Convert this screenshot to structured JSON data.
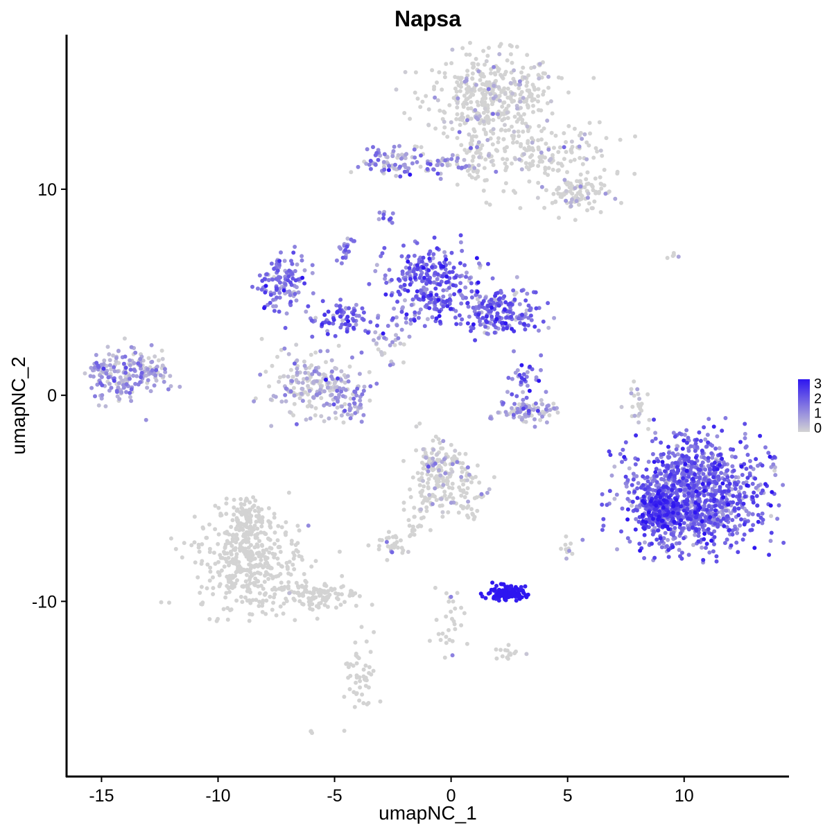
{
  "chart_data": {
    "type": "scatter",
    "title": "Napsa",
    "xlabel": "umapNC_1",
    "ylabel": "umapNC_2",
    "xlim": [
      -16.5,
      14.5
    ],
    "ylim": [
      -18.5,
      17.5
    ],
    "xticks": [
      -15,
      -10,
      -5,
      0,
      5,
      10
    ],
    "yticks": [
      -10,
      0,
      10
    ],
    "grid": false,
    "legend": {
      "placement": "right",
      "ticks": [
        0,
        1,
        2,
        3
      ],
      "low_color": "#D3D3D3",
      "high_color": "#2E16F0"
    },
    "clusters": [
      {
        "x": 1.7,
        "y": 14.6,
        "sx": 1.4,
        "sy": 1.0,
        "n": 380,
        "expr": 0.12
      },
      {
        "x": 3.7,
        "y": 11.6,
        "sx": 1.6,
        "sy": 0.8,
        "n": 190,
        "expr": 0.1
      },
      {
        "x": 5.4,
        "y": 9.7,
        "sx": 0.7,
        "sy": 0.5,
        "n": 90,
        "expr": 0.06
      },
      {
        "x": -2.7,
        "y": 11.3,
        "sx": 0.6,
        "sy": 0.4,
        "n": 60,
        "expr": 0.85
      },
      {
        "x": -0.6,
        "y": 11.2,
        "sx": 1.2,
        "sy": 0.3,
        "n": 60,
        "expr": 0.6
      },
      {
        "x": 1.0,
        "y": 11.8,
        "sx": 0.3,
        "sy": 1.0,
        "n": 50,
        "expr": 0.15
      },
      {
        "x": -2.8,
        "y": 8.6,
        "sx": 0.15,
        "sy": 0.2,
        "n": 10,
        "expr": 1.4
      },
      {
        "x": -7.2,
        "y": 5.5,
        "sx": 0.5,
        "sy": 0.6,
        "n": 120,
        "expr": 1.5
      },
      {
        "x": -4.6,
        "y": 3.8,
        "sx": 0.9,
        "sy": 0.4,
        "n": 90,
        "expr": 1.6
      },
      {
        "x": -4.5,
        "y": 7.2,
        "sx": 0.2,
        "sy": 0.4,
        "n": 20,
        "expr": 1.4
      },
      {
        "x": -1.0,
        "y": 5.4,
        "sx": 0.9,
        "sy": 0.9,
        "n": 280,
        "expr": 1.7
      },
      {
        "x": 2.1,
        "y": 4.1,
        "sx": 0.9,
        "sy": 0.6,
        "n": 200,
        "expr": 1.6
      },
      {
        "x": -2.8,
        "y": 2.5,
        "sx": 0.5,
        "sy": 0.6,
        "n": 30,
        "expr": 0.6
      },
      {
        "x": -6.0,
        "y": 0.5,
        "sx": 0.9,
        "sy": 0.7,
        "n": 190,
        "expr": 0.3
      },
      {
        "x": -4.5,
        "y": -0.2,
        "sx": 0.5,
        "sy": 0.5,
        "n": 60,
        "expr": 0.9
      },
      {
        "x": 3.1,
        "y": 0.6,
        "sx": 0.4,
        "sy": 0.6,
        "n": 40,
        "expr": 1.4
      },
      {
        "x": 3.2,
        "y": -0.8,
        "sx": 0.7,
        "sy": 0.3,
        "n": 80,
        "expr": 0.4
      },
      {
        "x": -14.2,
        "y": 1.0,
        "sx": 0.7,
        "sy": 0.6,
        "n": 160,
        "expr": 0.8
      },
      {
        "x": -12.8,
        "y": 1.2,
        "sx": 0.5,
        "sy": 0.5,
        "n": 60,
        "expr": 0.4
      },
      {
        "x": -0.6,
        "y": -3.8,
        "sx": 0.6,
        "sy": 0.8,
        "n": 180,
        "expr": 0.2
      },
      {
        "x": 0.8,
        "y": -4.6,
        "sx": 0.5,
        "sy": 0.7,
        "n": 50,
        "expr": 0.1
      },
      {
        "x": -1.5,
        "y": -6.0,
        "sx": 0.5,
        "sy": 0.6,
        "n": 25,
        "expr": 0.05
      },
      {
        "x": -2.6,
        "y": -7.3,
        "sx": 0.35,
        "sy": 0.3,
        "n": 30,
        "expr": 0.1
      },
      {
        "x": -8.7,
        "y": -8.0,
        "sx": 1.1,
        "sy": 1.2,
        "n": 420,
        "expr": 0.02
      },
      {
        "x": -8.8,
        "y": -6.0,
        "sx": 0.4,
        "sy": 0.6,
        "n": 80,
        "expr": 0.02
      },
      {
        "x": -5.8,
        "y": -9.7,
        "sx": 0.9,
        "sy": 0.4,
        "n": 120,
        "expr": 0.01
      },
      {
        "x": -3.9,
        "y": -13.5,
        "sx": 0.3,
        "sy": 1.0,
        "n": 50,
        "expr": 0.01
      },
      {
        "x": 0.0,
        "y": -11.0,
        "sx": 0.4,
        "sy": 0.9,
        "n": 30,
        "expr": 0.05
      },
      {
        "x": 2.4,
        "y": -9.6,
        "sx": 0.4,
        "sy": 0.17,
        "n": 130,
        "expr": 2.95
      },
      {
        "x": 2.4,
        "y": -12.5,
        "sx": 0.3,
        "sy": 0.15,
        "n": 15,
        "expr": 0.1
      },
      {
        "x": 5.0,
        "y": -7.5,
        "sx": 0.1,
        "sy": 0.3,
        "n": 10,
        "expr": 0.1
      },
      {
        "x": 7.9,
        "y": -0.5,
        "sx": 0.25,
        "sy": 0.7,
        "n": 25,
        "expr": 0.15
      },
      {
        "x": 10.4,
        "y": -4.8,
        "sx": 1.4,
        "sy": 1.3,
        "n": 1100,
        "expr": 1.65
      },
      {
        "x": 9.0,
        "y": -5.5,
        "sx": 0.5,
        "sy": 0.6,
        "n": 200,
        "expr": 2.2
      },
      {
        "x": 9.7,
        "y": 6.7,
        "sx": 0.2,
        "sy": 0.07,
        "n": 5,
        "expr": 0.05
      },
      {
        "x": -6.0,
        "y": -16.3,
        "sx": 0.05,
        "sy": 0.05,
        "n": 3,
        "expr": 0.1
      }
    ]
  }
}
